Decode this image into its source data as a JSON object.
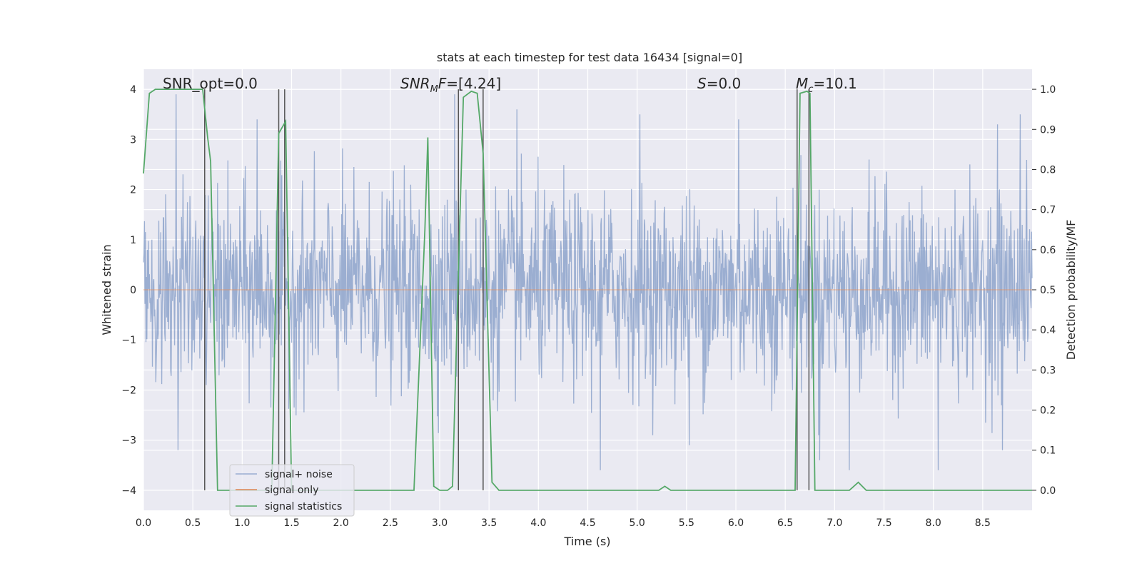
{
  "chart_data": {
    "type": "line",
    "title": "stats at each timestep for test data 16434 [signal=0]",
    "xlabel": "Time (s)",
    "ylabel": "Whitened strain",
    "ylabel_right": "Detection probability/MF",
    "xlim": [
      0.0,
      9.0
    ],
    "ylim": [
      -4.4,
      4.4
    ],
    "ylim_right": [
      -0.05,
      1.05
    ],
    "x_ticks": [
      "0.0",
      "0.5",
      "1.0",
      "1.5",
      "2.0",
      "2.5",
      "3.0",
      "3.5",
      "4.0",
      "4.5",
      "5.0",
      "5.5",
      "6.0",
      "6.5",
      "7.0",
      "7.5",
      "8.0",
      "8.5"
    ],
    "y_ticks": [
      "4",
      "3",
      "2",
      "1",
      "0",
      "−1",
      "−2",
      "−3",
      "−4"
    ],
    "y_ticks_right": [
      "1.0",
      "0.9",
      "0.8",
      "0.7",
      "0.6",
      "0.5",
      "0.4",
      "0.3",
      "0.2",
      "0.1",
      "0.0"
    ],
    "grid": true,
    "legend_position": "lower-left",
    "annotations": [
      {
        "text": "SNR_opt=0.0",
        "x": 0.2
      },
      {
        "text": "SNR_MF=[4.24]",
        "x": 2.6
      },
      {
        "text": "S=0.0",
        "x": 5.6
      },
      {
        "text": "M_c=10.1",
        "x": 6.6
      }
    ],
    "series": [
      {
        "name": "signal+ noise",
        "color": "#4c72b0",
        "axis": "left",
        "description": "whitened noise, roughly in [-2, 2] with spikes to about ±3.9",
        "peaks": [
          {
            "x": 0.33,
            "y": 3.9
          },
          {
            "x": 1.15,
            "y": 3.4
          },
          {
            "x": 3.15,
            "y": 3.9
          },
          {
            "x": 3.78,
            "y": 3.6
          },
          {
            "x": 4.63,
            "y": 3.1
          },
          {
            "x": 5.03,
            "y": 3.5
          },
          {
            "x": 6.03,
            "y": 3.4
          },
          {
            "x": 8.65,
            "y": 3.3
          },
          {
            "x": 8.88,
            "y": 3.5
          },
          {
            "x": 0.35,
            "y": -3.2
          },
          {
            "x": 4.63,
            "y": -3.6
          },
          {
            "x": 5.53,
            "y": -3.1
          },
          {
            "x": 6.85,
            "y": -3.4
          },
          {
            "x": 7.15,
            "y": -3.6
          },
          {
            "x": 8.05,
            "y": -3.6
          },
          {
            "x": 8.7,
            "y": -3.2
          }
        ]
      },
      {
        "name": "signal only",
        "color": "#dd8452",
        "axis": "left",
        "x": [
          0.0,
          9.0
        ],
        "y": [
          0.0,
          0.0
        ]
      },
      {
        "name": "signal statistics",
        "color": "#55a868",
        "axis": "right",
        "x": [
          0.0,
          0.06,
          0.12,
          0.5,
          0.6,
          0.65,
          0.68,
          0.75,
          1.3,
          1.37,
          1.44,
          1.5,
          2.74,
          2.85,
          2.88,
          2.94,
          3.0,
          3.08,
          3.13,
          3.19,
          3.24,
          3.32,
          3.38,
          3.44,
          3.53,
          3.6,
          3.65,
          5.22,
          5.28,
          5.34,
          6.6,
          6.65,
          6.72,
          6.75,
          6.8,
          7.15,
          7.24,
          7.32,
          9.0
        ],
        "y": [
          0.79,
          0.99,
          1.0,
          1.0,
          1.0,
          0.88,
          0.82,
          0.0,
          0.0,
          0.89,
          0.92,
          0.0,
          0.0,
          0.65,
          0.88,
          0.01,
          0.0,
          0.0,
          0.01,
          0.55,
          0.98,
          0.995,
          0.99,
          0.84,
          0.02,
          0.0,
          0.0,
          0.0,
          0.01,
          0.0,
          0.0,
          0.99,
          0.995,
          0.99,
          0.0,
          0.0,
          0.02,
          0.0,
          0.0
        ]
      }
    ],
    "vertical_markers": [
      0.62,
      1.37,
      1.43,
      3.19,
      3.44,
      6.62,
      6.74
    ]
  }
}
